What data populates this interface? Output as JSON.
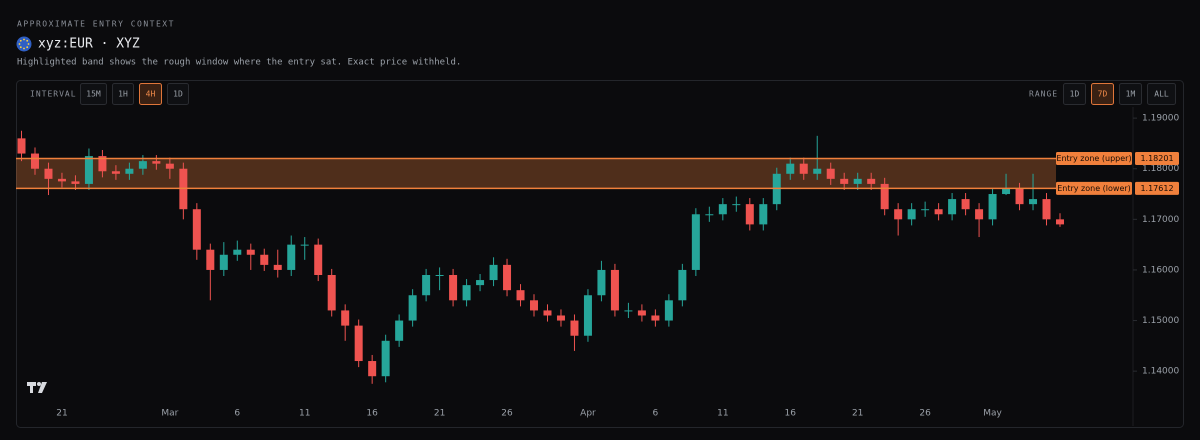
{
  "header": {
    "kicker": "APPROXIMATE ENTRY CONTEXT",
    "title": "xyz:EUR · XYZ",
    "subtitle": "Highlighted band shows the rough window where the entry sat. Exact price withheld."
  },
  "controls": {
    "interval": {
      "label": "INTERVAL",
      "options": [
        "15M",
        "1H",
        "4H",
        "1D"
      ],
      "active_index": 2
    },
    "range": {
      "label": "RANGE",
      "options": [
        "1D",
        "7D",
        "1M",
        "ALL"
      ],
      "active_index": 1
    }
  },
  "chart_data": {
    "type": "candlestick",
    "up_color": "#26a69a",
    "down_color": "#ef5350",
    "categories": [
      null,
      null,
      null,
      "21",
      null,
      null,
      null,
      null,
      null,
      null,
      null,
      "Mar",
      null,
      null,
      null,
      null,
      "6",
      null,
      null,
      null,
      null,
      "11",
      null,
      null,
      null,
      null,
      "16",
      null,
      null,
      null,
      null,
      "21",
      null,
      null,
      null,
      null,
      "26",
      null,
      null,
      null,
      null,
      null,
      "Apr",
      null,
      null,
      null,
      null,
      "6",
      null,
      null,
      null,
      null,
      "11",
      null,
      null,
      null,
      null,
      "16",
      null,
      null,
      null,
      null,
      "21",
      null,
      null,
      null,
      null,
      "26",
      null,
      null,
      null,
      null,
      "May",
      null,
      null,
      null,
      null,
      null
    ],
    "open": [
      1.186,
      1.183,
      1.18,
      1.178,
      1.1775,
      1.177,
      1.1825,
      1.1795,
      1.179,
      1.18,
      1.1815,
      1.181,
      1.18,
      1.172,
      1.164,
      1.16,
      1.163,
      1.164,
      1.163,
      1.161,
      1.16,
      1.165,
      1.165,
      1.159,
      1.152,
      1.149,
      1.142,
      1.139,
      1.146,
      1.15,
      1.155,
      1.159,
      1.159,
      1.154,
      1.157,
      1.158,
      1.161,
      1.156,
      1.154,
      1.152,
      1.151,
      1.15,
      1.147,
      1.155,
      1.16,
      1.152,
      1.152,
      1.151,
      1.15,
      1.154,
      1.16,
      1.171,
      1.171,
      1.173,
      1.173,
      1.169,
      1.173,
      1.179,
      1.181,
      1.179,
      1.18,
      1.178,
      1.177,
      1.178,
      1.177,
      1.172,
      1.17,
      1.172,
      1.172,
      1.171,
      1.174,
      1.172,
      1.17,
      1.175,
      1.176,
      1.173,
      1.174,
      1.17
    ],
    "high": [
      1.1875,
      1.1842,
      1.1812,
      1.1792,
      1.1787,
      1.184,
      1.1837,
      1.1807,
      1.1812,
      1.1827,
      1.1827,
      1.1822,
      1.1812,
      1.1732,
      1.1652,
      1.1655,
      1.1658,
      1.1652,
      1.1642,
      1.164,
      1.1668,
      1.1665,
      1.1662,
      1.1602,
      1.1532,
      1.1502,
      1.1432,
      1.1472,
      1.1512,
      1.1562,
      1.1602,
      1.1605,
      1.1602,
      1.1582,
      1.1592,
      1.1625,
      1.1622,
      1.1572,
      1.1552,
      1.1532,
      1.1522,
      1.1512,
      1.1562,
      1.1618,
      1.1612,
      1.1535,
      1.1532,
      1.1522,
      1.1552,
      1.1612,
      1.1722,
      1.1725,
      1.1742,
      1.1745,
      1.1742,
      1.1742,
      1.1802,
      1.1822,
      1.1822,
      1.1865,
      1.1812,
      1.1792,
      1.1792,
      1.1792,
      1.1782,
      1.1732,
      1.1732,
      1.1735,
      1.1732,
      1.1752,
      1.1752,
      1.1732,
      1.1762,
      1.179,
      1.1772,
      1.179,
      1.1752,
      1.1712
    ],
    "low": [
      1.1815,
      1.1788,
      1.1748,
      1.1763,
      1.1758,
      1.1758,
      1.1783,
      1.1778,
      1.1778,
      1.1788,
      1.1798,
      1.178,
      1.17,
      1.162,
      1.154,
      1.1588,
      1.1618,
      1.16,
      1.1598,
      1.1585,
      1.1588,
      1.162,
      1.1578,
      1.1508,
      1.146,
      1.1408,
      1.1375,
      1.1378,
      1.1448,
      1.1488,
      1.1538,
      1.156,
      1.1528,
      1.1528,
      1.1558,
      1.1568,
      1.1548,
      1.1528,
      1.1508,
      1.1498,
      1.1488,
      1.144,
      1.1458,
      1.1538,
      1.1508,
      1.1505,
      1.1498,
      1.1488,
      1.1488,
      1.1528,
      1.1588,
      1.1695,
      1.1698,
      1.1715,
      1.1678,
      1.1678,
      1.1718,
      1.1778,
      1.1778,
      1.1778,
      1.1768,
      1.1758,
      1.1758,
      1.1758,
      1.1708,
      1.1668,
      1.1688,
      1.1705,
      1.1698,
      1.1698,
      1.1708,
      1.1665,
      1.1688,
      1.1748,
      1.1718,
      1.1718,
      1.1688,
      1.1685
    ],
    "close": [
      1.183,
      1.18,
      1.178,
      1.1775,
      1.177,
      1.1825,
      1.1795,
      1.179,
      1.18,
      1.1815,
      1.181,
      1.18,
      1.172,
      1.164,
      1.16,
      1.163,
      1.164,
      1.163,
      1.161,
      1.16,
      1.165,
      1.165,
      1.159,
      1.152,
      1.149,
      1.142,
      1.139,
      1.146,
      1.15,
      1.155,
      1.159,
      1.159,
      1.154,
      1.157,
      1.158,
      1.161,
      1.156,
      1.154,
      1.152,
      1.151,
      1.15,
      1.147,
      1.155,
      1.16,
      1.152,
      1.152,
      1.151,
      1.15,
      1.154,
      1.16,
      1.171,
      1.171,
      1.173,
      1.173,
      1.169,
      1.173,
      1.179,
      1.181,
      1.179,
      1.18,
      1.178,
      1.177,
      1.178,
      1.177,
      1.172,
      1.17,
      1.172,
      1.172,
      1.171,
      1.174,
      1.172,
      1.17,
      1.175,
      1.176,
      1.173,
      1.174,
      1.17,
      1.169
    ],
    "ylim": [
      1.1343,
      1.192
    ],
    "yticks": [
      {
        "value": 1.14,
        "label": "1.14000"
      },
      {
        "value": 1.15,
        "label": "1.15000"
      },
      {
        "value": 1.16,
        "label": "1.16000"
      },
      {
        "value": 1.17,
        "label": "1.17000"
      },
      {
        "value": 1.18,
        "label": "1.18000"
      },
      {
        "value": 1.19,
        "label": "1.19000"
      }
    ],
    "zone_color": "#f0803c",
    "zones": [
      {
        "label": "Entry zone (upper)",
        "value": 1.18201
      },
      {
        "label": "Entry zone (lower)",
        "value": 1.17612
      }
    ]
  }
}
